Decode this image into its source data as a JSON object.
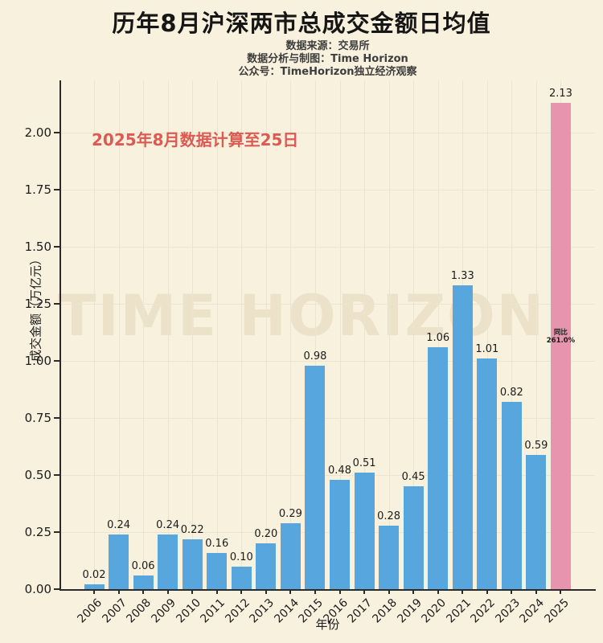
{
  "header": {
    "title": "历年8月沪深两市总成交金额日均值",
    "subtitles": [
      "数据来源：交易所",
      "数据分析与制图：Time Horizon",
      "公众号：TimeHorizon独立经济观察"
    ]
  },
  "annotation": {
    "text": "2025年8月数据计算至25日",
    "color": "#DD5A52"
  },
  "watermark": "TIME HORIZON",
  "chart_data": {
    "type": "bar",
    "title": "历年8月沪深两市总成交金额日均值",
    "xlabel": "年份",
    "ylabel": "成交金额（万亿元）",
    "categories": [
      "2006",
      "2007",
      "2008",
      "2009",
      "2010",
      "2011",
      "2012",
      "2013",
      "2014",
      "2015",
      "2016",
      "2017",
      "2018",
      "2019",
      "2020",
      "2021",
      "2022",
      "2023",
      "2024",
      "2025"
    ],
    "values": [
      0.02,
      0.24,
      0.06,
      0.24,
      0.22,
      0.16,
      0.1,
      0.2,
      0.29,
      0.98,
      0.48,
      0.51,
      0.28,
      0.45,
      1.06,
      1.33,
      1.01,
      0.82,
      0.59,
      2.13
    ],
    "ylim": [
      0,
      2.23
    ],
    "yticks": [
      0,
      0.25,
      0.5,
      0.75,
      1,
      1.25,
      1.5,
      1.75,
      2
    ],
    "grid": true,
    "legend": false,
    "colors": {
      "bar": "#57A7DE",
      "highlight": "#E795AE",
      "background": "#F8F1DE",
      "annotation": "#DD5A52",
      "axis": "#2b2b2b"
    },
    "highlight": {
      "index": 19,
      "label_lines": [
        "同比",
        "261.0%"
      ]
    }
  }
}
